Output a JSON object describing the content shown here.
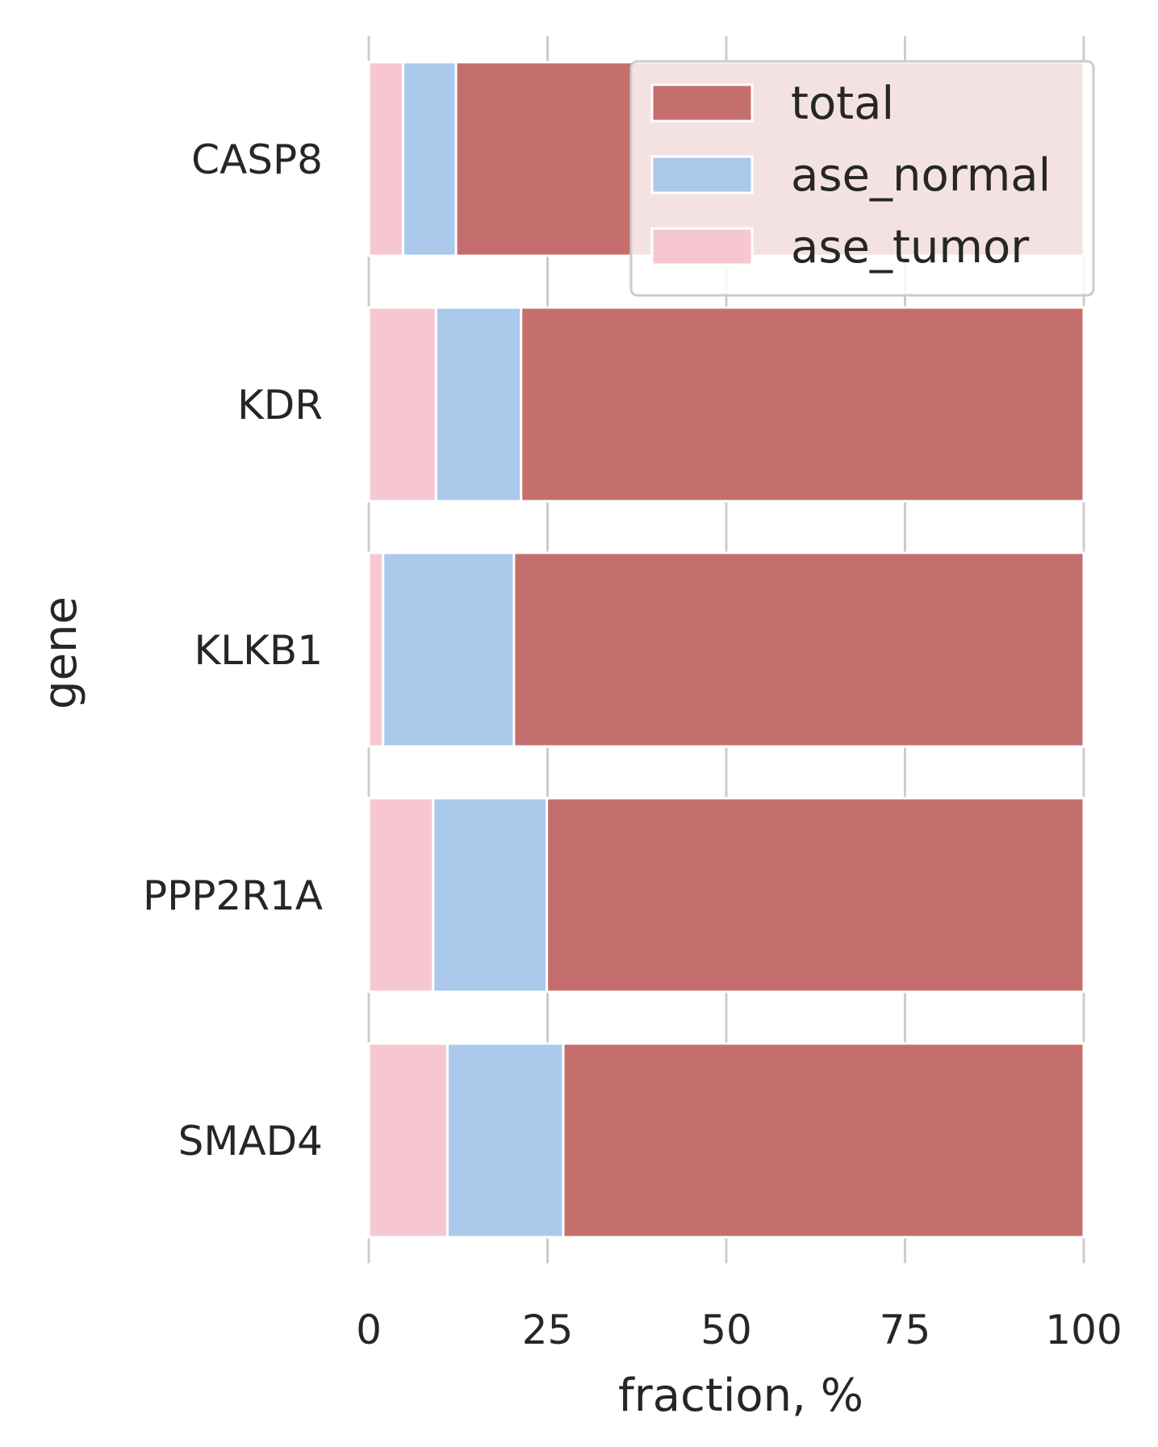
{
  "chart_data": {
    "type": "bar",
    "orientation": "horizontal",
    "xlabel": "fraction, %",
    "ylabel": "gene",
    "xlim": [
      0,
      100
    ],
    "xticks": [
      "0",
      "25",
      "50",
      "75",
      "100"
    ],
    "categories": [
      "CASP8",
      "KDR",
      "KLKB1",
      "PPP2R1A",
      "SMAD4"
    ],
    "series": [
      {
        "name": "total",
        "color": "#c56e6e",
        "values": [
          100,
          100,
          100,
          100,
          100
        ]
      },
      {
        "name": "ase_normal",
        "color": "#abc9eb",
        "values": [
          12.2,
          21.3,
          20.3,
          24.9,
          27.2
        ]
      },
      {
        "name": "ase_tumor",
        "color": "#f7c7d1",
        "values": [
          4.8,
          9.4,
          2.0,
          9.0,
          11.0
        ]
      }
    ],
    "grid": true,
    "legend_position": "top-right"
  }
}
